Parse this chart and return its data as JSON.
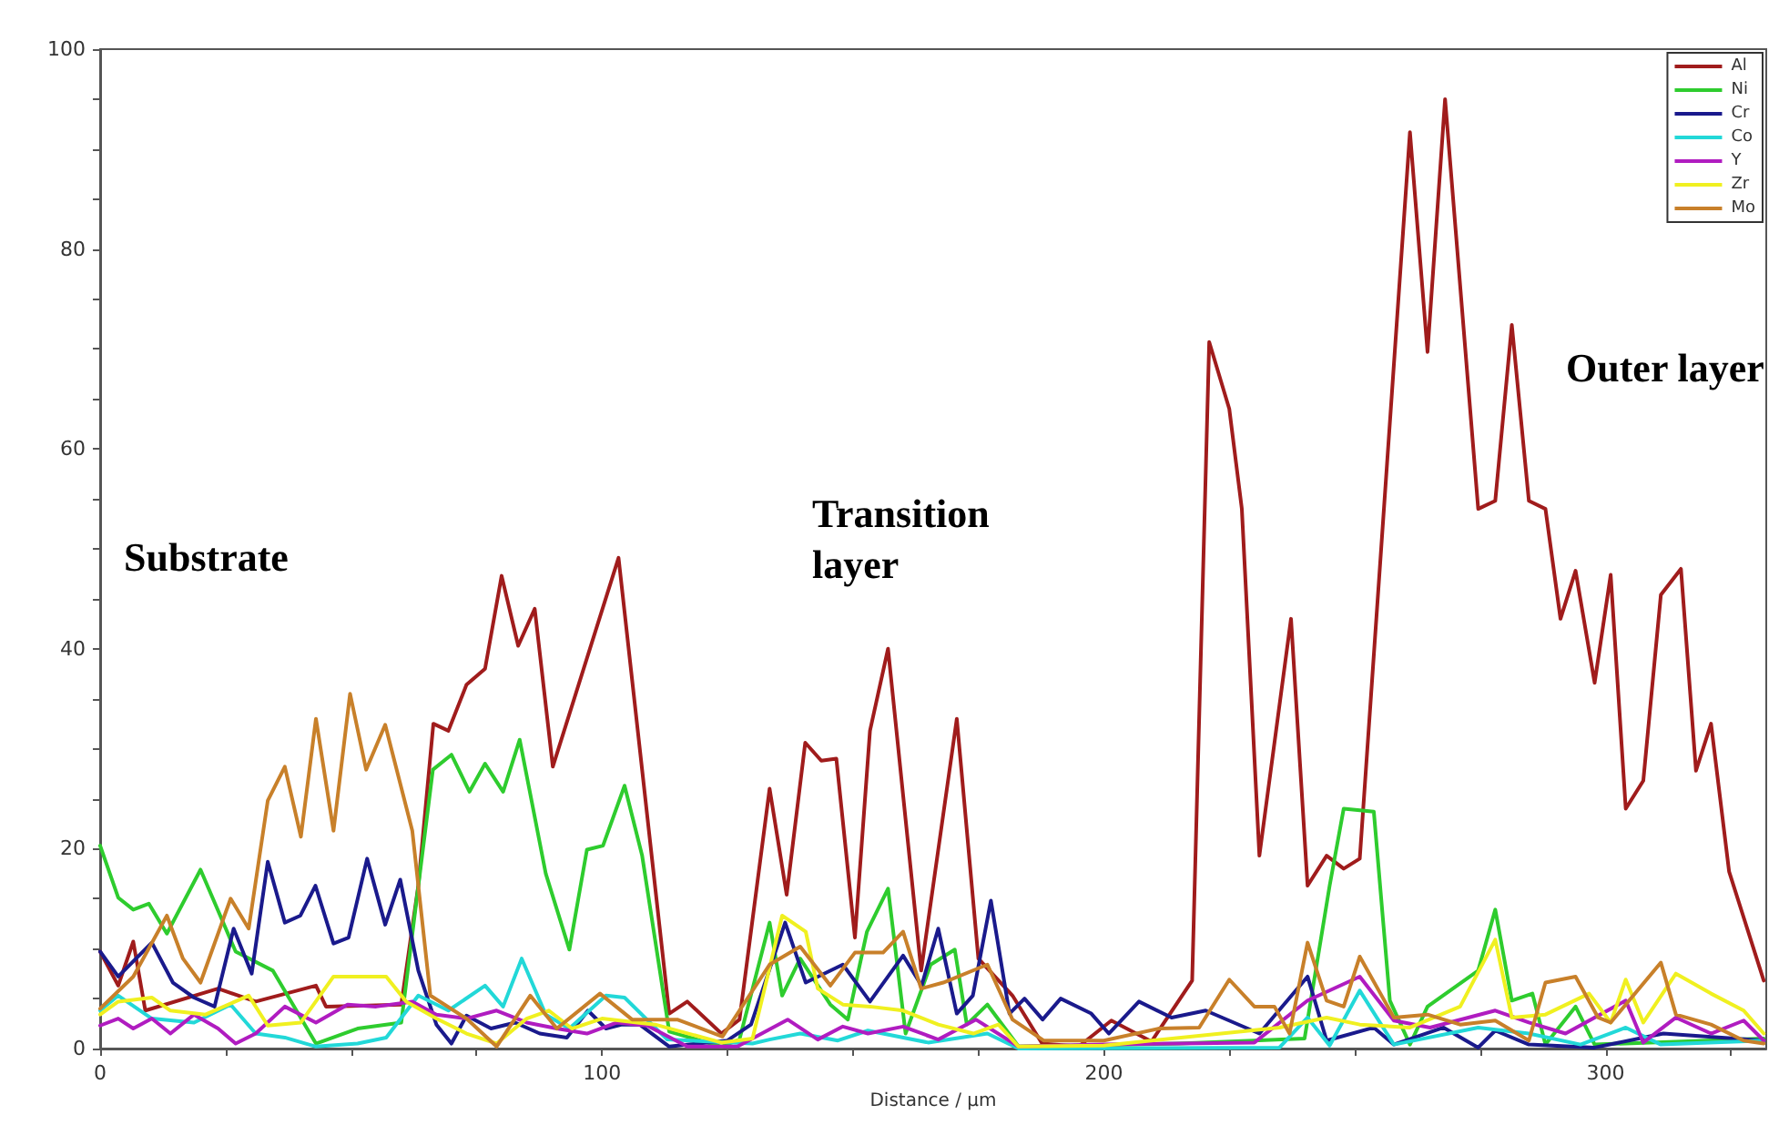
{
  "chart_data": {
    "type": "line",
    "xlabel": "Distance / µm",
    "annotations": [
      "Substrate",
      "Transition layer",
      "Outer layer"
    ],
    "xlim": [
      0,
      332
    ],
    "xticks": [
      0,
      {
        "value": 25,
        "label": null
      },
      {
        "value": 50,
        "label": null
      },
      {
        "value": 75,
        "label": null
      },
      100,
      {
        "value": 125,
        "label": null
      },
      {
        "value": 150,
        "label": null
      },
      {
        "value": 175,
        "label": null
      },
      200,
      {
        "value": 225,
        "label": null
      },
      {
        "value": 250,
        "label": null
      },
      {
        "value": 275,
        "label": null
      },
      300,
      {
        "value": 325,
        "label": null
      }
    ],
    "ylim": [
      0,
      100
    ],
    "yticks": [
      0,
      {
        "value": 5,
        "label": null
      },
      {
        "value": 10,
        "label": null
      },
      {
        "value": 15,
        "label": null
      },
      20,
      {
        "value": 25,
        "label": null
      },
      {
        "value": 30,
        "label": null
      },
      {
        "value": 35,
        "label": null
      },
      40,
      {
        "value": 45,
        "label": null
      },
      {
        "value": 50,
        "label": null
      },
      {
        "value": 55,
        "label": null
      },
      60,
      {
        "value": 65,
        "label": null
      },
      {
        "value": 70,
        "label": null
      },
      {
        "value": 75,
        "label": null
      },
      80,
      {
        "value": 85,
        "label": null
      },
      {
        "value": 90,
        "label": null
      },
      {
        "value": 95,
        "label": null
      },
      100
    ],
    "grid": false,
    "legend": "top right",
    "marker": "none",
    "line_style": "solid",
    "series": [
      {
        "name": "Al",
        "color": "#a01c1c",
        "x": [
          0,
          3.6,
          6.6,
          9,
          23.5,
          31,
          43,
          45,
          60,
          63.4,
          66.4,
          69.4,
          73,
          76.7,
          80,
          83.3,
          86.6,
          90.2,
          103.3,
          113.4,
          117,
          123.8,
          127.4,
          133.4,
          136.8,
          140.5,
          143.7,
          146.7,
          150.4,
          153.4,
          157,
          163.6,
          170.7,
          175,
          181.8,
          187.7,
          195,
          201.5,
          209.5,
          217.6,
          221,
          225,
          227.5,
          231,
          237.3,
          240.6,
          244.4,
          247.8,
          251,
          261,
          264.5,
          268,
          274.6,
          278,
          281.3,
          284.7,
          288,
          291,
          294,
          297.8,
          301,
          304,
          307.5,
          311,
          315,
          318,
          321,
          324.6,
          331.5
        ],
        "values": [
          9.7,
          6.3,
          10.7,
          3.8,
          6,
          4.7,
          6.3,
          4.2,
          4.4,
          16.3,
          32.5,
          31.8,
          36.4,
          38,
          47.3,
          40.3,
          44,
          28.2,
          49.1,
          3.5,
          4.7,
          1.5,
          2.9,
          26,
          15.4,
          30.6,
          28.8,
          29,
          11.1,
          31.8,
          40,
          7.8,
          33,
          9,
          5.3,
          0.5,
          0.2,
          2.8,
          0.7,
          6.8,
          70.7,
          64,
          54,
          19.3,
          43,
          16.3,
          19.3,
          18,
          19,
          91.7,
          69.7,
          95,
          54,
          54.8,
          72.4,
          54.8,
          54,
          43,
          47.8,
          36.6,
          47.4,
          24,
          26.8,
          45.4,
          48,
          27.8,
          32.5,
          17.7,
          6.8
        ]
      },
      {
        "name": "Ni",
        "color": "#2ecc2e",
        "x": [
          0,
          3.6,
          6.6,
          9.7,
          13.3,
          20,
          27,
          34.4,
          43,
          51.3,
          60,
          66.3,
          70,
          73.6,
          76.7,
          80.3,
          83.6,
          88.8,
          93.5,
          97,
          100.2,
          104.5,
          108,
          113.4,
          123.8,
          127.4,
          133.4,
          135.9,
          139.5,
          145.5,
          149,
          152.8,
          157,
          160.5,
          165.5,
          170.3,
          172.7,
          176.8,
          183,
          215,
          240,
          245,
          247.8,
          253.8,
          257,
          261,
          264.5,
          274.6,
          278,
          281.3,
          285.4,
          288,
          294,
          297.8,
          331.5
        ],
        "values": [
          20.3,
          15.1,
          13.9,
          14.5,
          11.5,
          17.9,
          9.7,
          7.8,
          0.5,
          2,
          2.6,
          27.9,
          29.4,
          25.7,
          28.5,
          25.7,
          30.9,
          17.5,
          9.9,
          19.9,
          20.3,
          26.3,
          19.3,
          1.7,
          0.2,
          0.9,
          12.6,
          5.3,
          9,
          4.4,
          2.9,
          11.7,
          16,
          1.5,
          8.4,
          9.9,
          2.4,
          4.4,
          0.2,
          0.5,
          1,
          16.3,
          24,
          23.7,
          4.8,
          0.4,
          4.2,
          7.8,
          13.9,
          4.8,
          5.5,
          0.4,
          4.2,
          0.4,
          1
        ]
      },
      {
        "name": "Cr",
        "color": "#1a1a8c",
        "x": [
          0,
          3.6,
          10.3,
          14.5,
          18.7,
          22.8,
          26.6,
          30.2,
          33.4,
          36.8,
          39.9,
          42.9,
          46.5,
          49.5,
          53.2,
          56.8,
          59.8,
          63.4,
          67,
          70,
          73,
          77.9,
          82.7,
          87.6,
          93,
          97.2,
          100.8,
          104,
          107.5,
          113.4,
          125,
          129.7,
          136.5,
          140.6,
          148,
          153.4,
          160,
          163.7,
          167,
          170.7,
          173.9,
          177.5,
          181.2,
          184.2,
          187.8,
          191.4,
          197.5,
          201,
          207,
          213.5,
          220.3,
          231,
          240.6,
          244.4,
          253.8,
          257.8,
          267.7,
          274.6,
          278,
          284.7,
          297.8,
          311.5,
          331.5
        ],
        "values": [
          9.7,
          7.2,
          10.6,
          6.6,
          5.1,
          4.2,
          12,
          7.5,
          18.7,
          12.6,
          13.3,
          16.3,
          10.5,
          11.1,
          19,
          12.4,
          16.9,
          7.8,
          2.4,
          0.5,
          3.3,
          2,
          2.6,
          1.5,
          1.1,
          3.8,
          2,
          2.4,
          2.4,
          0.2,
          0.8,
          2.4,
          12.6,
          6.6,
          8.4,
          4.7,
          9.3,
          6.3,
          12,
          3.5,
          5.3,
          14.8,
          3.5,
          5,
          2.9,
          5,
          3.5,
          1.5,
          4.7,
          3.1,
          3.8,
          1.5,
          7.2,
          0.8,
          2.1,
          0.4,
          2.1,
          0.1,
          1.8,
          0.4,
          0.1,
          1.5,
          0.8
        ]
      },
      {
        "name": "Co",
        "color": "#22d8d8",
        "x": [
          0,
          3.6,
          10.3,
          18.7,
          26,
          31,
          36.8,
          43,
          51.3,
          57,
          63.4,
          69.4,
          76.7,
          80.3,
          84,
          88.8,
          93.5,
          100.8,
          104.5,
          113,
          130,
          133.4,
          139.5,
          147,
          153,
          165,
          176.8,
          183,
          235,
          240.6,
          245,
          251,
          257.8,
          274.6,
          284.7,
          295,
          304,
          311,
          331.5
        ],
        "values": [
          3.8,
          5.3,
          3,
          2.6,
          4.4,
          1.5,
          1.1,
          0.2,
          0.5,
          1.1,
          5.3,
          3.8,
          6.3,
          4.2,
          9,
          3.4,
          2,
          5.3,
          5.1,
          0.9,
          0.5,
          0.9,
          1.5,
          0.8,
          1.8,
          0.6,
          1.5,
          0,
          0.1,
          3.1,
          0.3,
          5.8,
          0.4,
          2.1,
          1.5,
          0.4,
          2.1,
          0.4,
          0.8
        ]
      },
      {
        "name": "Y",
        "color": "#b01cc0",
        "x": [
          0,
          3.6,
          6.6,
          10.3,
          14,
          18.7,
          23.5,
          27,
          31,
          36.8,
          43,
          49.3,
          55,
          62.2,
          67,
          73,
          79,
          85,
          91,
          97,
          103,
          109,
          117,
          127,
          137,
          143,
          148,
          153,
          160,
          167,
          174.5,
          183,
          200,
          230,
          240.6,
          251,
          257.8,
          265,
          278,
          284.7,
          292,
          304,
          307.5,
          314,
          321,
          327.5,
          331.5
        ],
        "values": [
          2.3,
          3,
          2,
          3,
          1.5,
          3.4,
          2,
          0.5,
          1.5,
          4.2,
          2.6,
          4.4,
          4.2,
          4.7,
          3.4,
          3,
          3.8,
          2.6,
          2,
          1.5,
          2.6,
          2.3,
          0.2,
          0.2,
          2.9,
          0.9,
          2.2,
          1.5,
          2.2,
          0.9,
          2.9,
          0.2,
          0.4,
          0.6,
          4.8,
          7.2,
          2.8,
          2.1,
          3.8,
          2.6,
          1.5,
          4.8,
          0.6,
          3.1,
          1.5,
          2.8,
          0.8
        ]
      },
      {
        "name": "Zr",
        "color": "#f0f020",
        "x": [
          0,
          3.6,
          10.3,
          14,
          21,
          29.6,
          33.4,
          40,
          46.5,
          57,
          61,
          67,
          73,
          79,
          85,
          89.4,
          94,
          100,
          110.6,
          123.8,
          130,
          135.9,
          140.6,
          143,
          148,
          153.4,
          160,
          167,
          174,
          179,
          183,
          200,
          235,
          244.4,
          251,
          261,
          271,
          278,
          281.3,
          288,
          296.7,
          301,
          304,
          307.5,
          314,
          321,
          327.5,
          331.5
        ],
        "values": [
          3.4,
          4.7,
          5.1,
          3.8,
          3.4,
          5.3,
          2.3,
          2.6,
          7.2,
          7.2,
          4.7,
          3,
          1.5,
          0.5,
          3,
          3.8,
          2,
          3,
          2.4,
          0.6,
          1,
          13.3,
          11.7,
          6,
          4.4,
          4.2,
          3.8,
          2.4,
          1.5,
          2.4,
          0.2,
          0.3,
          2.1,
          3.1,
          2.4,
          2.1,
          4.2,
          10.9,
          3.1,
          3.4,
          5.5,
          2.6,
          6.9,
          2.6,
          7.5,
          5.5,
          3.8,
          1.5
        ]
      },
      {
        "name": "Mo",
        "color": "#c8802a",
        "x": [
          0,
          6.6,
          13.3,
          16.5,
          20,
          26,
          29.6,
          33.4,
          36.8,
          40,
          43,
          46.5,
          49.8,
          53,
          56.8,
          62.2,
          65.8,
          73,
          79,
          85.7,
          91,
          99.6,
          106,
          115,
          124,
          133.4,
          139.5,
          145.5,
          150.4,
          156,
          160,
          163.6,
          168,
          176.8,
          181.8,
          188,
          200,
          211,
          219,
          225,
          230,
          234,
          237,
          240.6,
          244.4,
          247.8,
          251,
          257.8,
          264.5,
          271,
          278,
          284.7,
          288,
          294,
          298.5,
          301,
          311,
          314,
          321,
          327.5,
          331.5
        ],
        "values": [
          4,
          7.2,
          13.3,
          9,
          6.6,
          15,
          12,
          24.8,
          28.2,
          21.2,
          33,
          21.8,
          35.5,
          27.9,
          32.4,
          21.8,
          5.3,
          3,
          0.2,
          5.3,
          2,
          5.5,
          2.9,
          2.9,
          1.2,
          8.4,
          10.2,
          6.3,
          9.6,
          9.6,
          11.7,
          6,
          6.6,
          8.4,
          2.9,
          0.8,
          0.8,
          2,
          2.1,
          6.9,
          4.2,
          4.2,
          1.5,
          10.6,
          4.8,
          4.2,
          9.2,
          3.1,
          3.4,
          2.4,
          2.8,
          0.8,
          6.6,
          7.2,
          3.1,
          2.6,
          8.6,
          3.4,
          2.4,
          0.8,
          0.5
        ]
      }
    ]
  }
}
